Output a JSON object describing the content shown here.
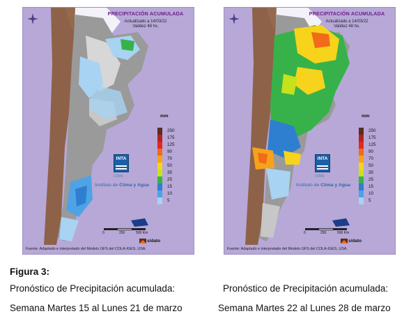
{
  "maps": [
    {
      "title": "PRECIPITACIÓN ACUMULADA",
      "updated": "Actualizado a 14/03/22",
      "validity": "Validez 48 hs.",
      "source": "Fuente: Adaptado e interpretado del Modelo GFS del COLA-IGES, USA.",
      "scale_labels": [
        "0",
        "250",
        "500 Km"
      ],
      "nodata_label": "s/dato",
      "brand": {
        "logo": "INTA",
        "org": "CIRN",
        "institute_prefix": "Instituto de ",
        "institute_highlight": "Clima y Agua"
      }
    },
    {
      "title": "PRECIPITACIÓN ACUMULADA",
      "updated": "Actualizado a 14/03/22",
      "validity": "Validez 48 hs.",
      "source": "Fuente: Adaptado e interpretado del Modelo GFS del COLA-IGES, USA.",
      "scale_labels": [
        "0",
        "250",
        "500 Km"
      ],
      "nodata_label": "s/dato",
      "brand": {
        "logo": "INTA",
        "org": "CIRN",
        "institute_prefix": "Instituto de ",
        "institute_highlight": "Clima y Agua"
      }
    }
  ],
  "legend": {
    "unit": "mm",
    "classes": [
      {
        "label": "250",
        "color": "#5a2d1e"
      },
      {
        "label": "175",
        "color": "#b22222"
      },
      {
        "label": "125",
        "color": "#e02b1b"
      },
      {
        "label": "90",
        "color": "#f26a1b"
      },
      {
        "label": "70",
        "color": "#f7a21b"
      },
      {
        "label": "50",
        "color": "#f7d31b"
      },
      {
        "label": "35",
        "color": "#c7e21b"
      },
      {
        "label": "25",
        "color": "#37b24a"
      },
      {
        "label": "15",
        "color": "#2f7fd0"
      },
      {
        "label": "10",
        "color": "#4fa3e5"
      },
      {
        "label": "5",
        "color": "#a8d3f2"
      }
    ]
  },
  "colors": {
    "title": "#6a1f86",
    "frame": "#b7a8d8",
    "sea": "#b7a8d8"
  },
  "figure": {
    "label": "Figura 3:",
    "left_line1": "Pronóstico de Precipitación acumulada:",
    "left_line2": "Semana Martes 15 al Lunes  21 de marzo",
    "right_line1": "Pronóstico de Precipitación acumulada:",
    "right_line2": "Semana Martes 22 al Lunes  28 de marzo"
  }
}
